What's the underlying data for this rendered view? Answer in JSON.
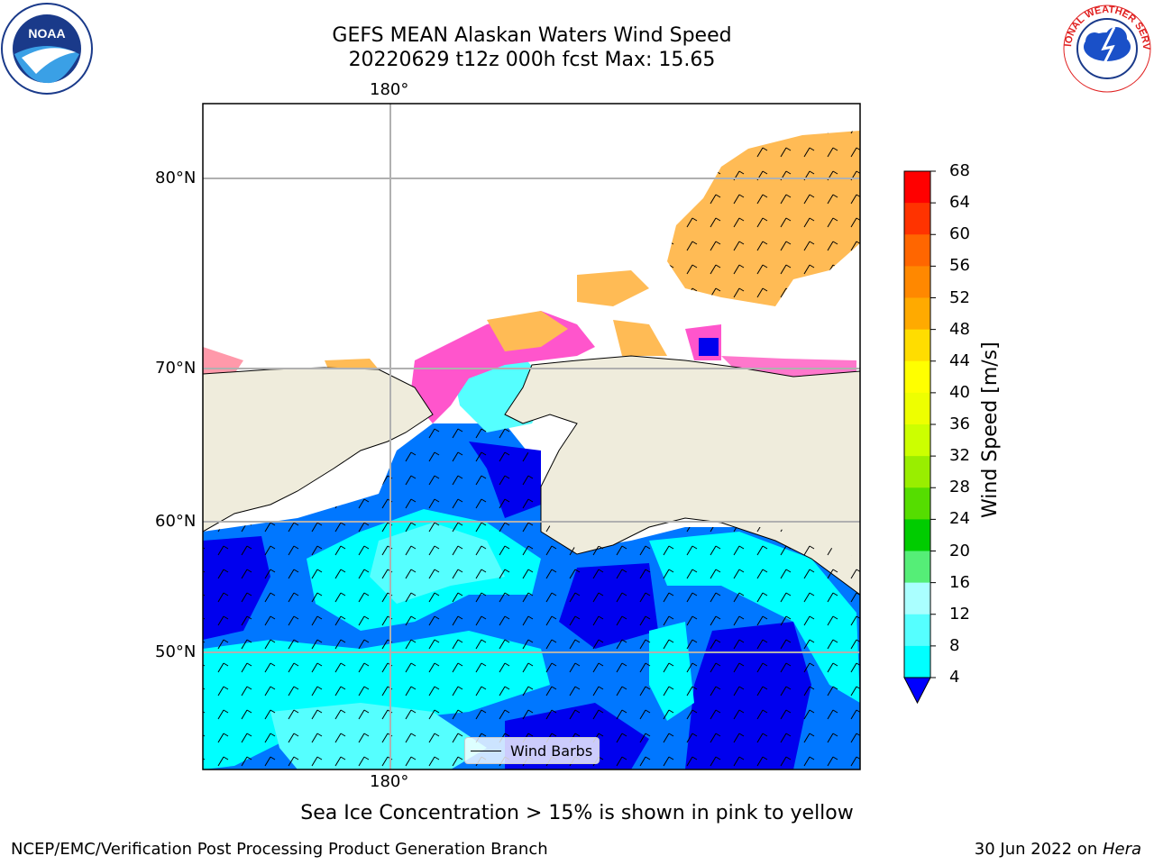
{
  "title_line1": "GEFS MEAN Alaskan Waters Wind Speed",
  "title_line2": "20220629 t12z 000h fcst   Max: 15.65",
  "axes": {
    "lon_label_top": "180°",
    "lon_label_bottom": "180°",
    "lat_labels": [
      "80°N",
      "70°N",
      "60°N",
      "50°N"
    ]
  },
  "legend": {
    "label": "Wind Barbs"
  },
  "colorbar": {
    "title": "Wind Speed [m/s]",
    "ticks": [
      "68",
      "64",
      "60",
      "56",
      "52",
      "48",
      "44",
      "40",
      "36",
      "32",
      "28",
      "24",
      "20",
      "16",
      "12",
      "8",
      "4"
    ],
    "colors": [
      "#ff0000",
      "#ff3300",
      "#ff6600",
      "#ff8800",
      "#ffaa00",
      "#ffdd00",
      "#ffff00",
      "#eeff00",
      "#ccff00",
      "#99ee00",
      "#55dd00",
      "#00cc00",
      "#55ee77",
      "#aaffff",
      "#55ffff",
      "#00ffff",
      "#0077ff"
    ],
    "extend_color": "#0000ff"
  },
  "caption": "Sea Ice Concentration > 15% is shown in pink to yellow",
  "footer": {
    "left": "NCEP/EMC/Verification Post Processing Product Generation Branch",
    "right_prefix": "30 Jun 2022 on ",
    "right_machine": "Hera"
  },
  "logos": {
    "left": "NOAA",
    "right": "NATIONAL WEATHER SERVICE"
  },
  "colors": {
    "land": "#efecdc",
    "ice": "#ffbb55",
    "ice_edge": "#ff55cc",
    "wind_dark": "#0000ee",
    "wind_mid": "#0077ff",
    "wind_light": "#00ffff",
    "wind_pale": "#55ffff"
  }
}
